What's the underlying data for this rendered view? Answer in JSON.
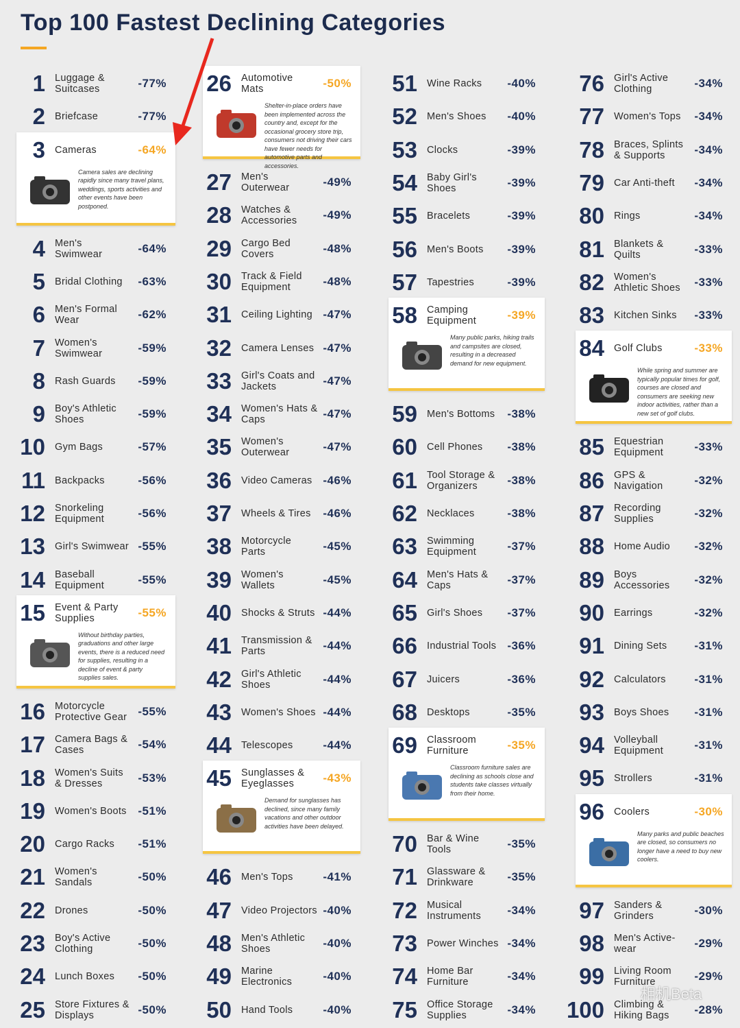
{
  "title": "Top 100 Fastest Declining Categories",
  "watermark": "相机Beta",
  "items": [
    {
      "rank": 1,
      "name": "Luggage & Suitcases",
      "change": "-77%"
    },
    {
      "rank": 2,
      "name": "Briefcase",
      "change": "-77%"
    },
    {
      "rank": 3,
      "name": "Cameras",
      "change": "-64%",
      "description": "Camera sales are declining rapidly since many travel plans, weddings, sports activities and other events have been postponed."
    },
    {
      "rank": 4,
      "name": "Men's Swimwear",
      "change": "-64%"
    },
    {
      "rank": 5,
      "name": "Bridal Clothing",
      "change": "-63%"
    },
    {
      "rank": 6,
      "name": "Men's Formal Wear",
      "change": "-62%"
    },
    {
      "rank": 7,
      "name": "Women's Swimwear",
      "change": "-59%"
    },
    {
      "rank": 8,
      "name": "Rash Guards",
      "change": "-59%"
    },
    {
      "rank": 9,
      "name": "Boy's Athletic Shoes",
      "change": "-59%"
    },
    {
      "rank": 10,
      "name": "Gym Bags",
      "change": "-57%"
    },
    {
      "rank": 11,
      "name": "Backpacks",
      "change": "-56%"
    },
    {
      "rank": 12,
      "name": "Snorkeling Equipment",
      "change": "-56%"
    },
    {
      "rank": 13,
      "name": "Girl's Swimwear",
      "change": "-55%"
    },
    {
      "rank": 14,
      "name": "Baseball Equipment",
      "change": "-55%"
    },
    {
      "rank": 15,
      "name": "Event & Party Supplies",
      "change": "-55%",
      "description": "Without birthday parties, graduations and other large events, there is a reduced need for supplies, resulting in a decline of event & party supplies sales."
    },
    {
      "rank": 16,
      "name": "Motorcycle Protective Gear",
      "change": "-55%"
    },
    {
      "rank": 17,
      "name": "Camera Bags & Cases",
      "change": "-54%"
    },
    {
      "rank": 18,
      "name": "Women's Suits & Dresses",
      "change": "-53%"
    },
    {
      "rank": 19,
      "name": "Women's Boots",
      "change": "-51%"
    },
    {
      "rank": 20,
      "name": "Cargo Racks",
      "change": "-51%"
    },
    {
      "rank": 21,
      "name": "Women's Sandals",
      "change": "-50%"
    },
    {
      "rank": 22,
      "name": "Drones",
      "change": "-50%"
    },
    {
      "rank": 23,
      "name": "Boy's Active Clothing",
      "change": "-50%"
    },
    {
      "rank": 24,
      "name": "Lunch Boxes",
      "change": "-50%"
    },
    {
      "rank": 25,
      "name": "Store Fixtures & Displays",
      "change": "-50%"
    },
    {
      "rank": 26,
      "name": "Automotive Mats",
      "change": "-50%",
      "description": "Shelter-in-place orders have been implemented across the country and, except for the occasional grocery store trip, consumers not driving their cars have fewer needs for automotive parts and accessories."
    },
    {
      "rank": 27,
      "name": "Men's Outerwear",
      "change": "-49%"
    },
    {
      "rank": 28,
      "name": "Watches & Accessories",
      "change": "-49%"
    },
    {
      "rank": 29,
      "name": "Cargo Bed Covers",
      "change": "-48%"
    },
    {
      "rank": 30,
      "name": "Track & Field Equipment",
      "change": "-48%"
    },
    {
      "rank": 31,
      "name": "Ceiling Lighting",
      "change": "-47%"
    },
    {
      "rank": 32,
      "name": "Camera Lenses",
      "change": "-47%"
    },
    {
      "rank": 33,
      "name": "Girl's Coats and Jackets",
      "change": "-47%"
    },
    {
      "rank": 34,
      "name": "Women's Hats & Caps",
      "change": "-47%"
    },
    {
      "rank": 35,
      "name": "Women's Outerwear",
      "change": "-47%"
    },
    {
      "rank": 36,
      "name": "Video Cameras",
      "change": "-46%"
    },
    {
      "rank": 37,
      "name": "Wheels & Tires",
      "change": "-46%"
    },
    {
      "rank": 38,
      "name": "Motorcycle Parts",
      "change": "-45%"
    },
    {
      "rank": 39,
      "name": "Women's Wallets",
      "change": "-45%"
    },
    {
      "rank": 40,
      "name": "Shocks & Struts",
      "change": "-44%"
    },
    {
      "rank": 41,
      "name": "Transmission & Parts",
      "change": "-44%"
    },
    {
      "rank": 42,
      "name": "Girl's Athletic Shoes",
      "change": "-44%"
    },
    {
      "rank": 43,
      "name": "Women's Shoes",
      "change": "-44%"
    },
    {
      "rank": 44,
      "name": "Telescopes",
      "change": "-44%"
    },
    {
      "rank": 45,
      "name": "Sunglasses & Eyeglasses",
      "change": "-43%",
      "description": "Demand for sunglasses has declined, since many family vacations and other outdoor activities have been delayed."
    },
    {
      "rank": 46,
      "name": "Men's Tops",
      "change": "-41%"
    },
    {
      "rank": 47,
      "name": "Video Projectors",
      "change": "-40%"
    },
    {
      "rank": 48,
      "name": "Men's Athletic Shoes",
      "change": "-40%"
    },
    {
      "rank": 49,
      "name": "Marine Electronics",
      "change": "-40%"
    },
    {
      "rank": 50,
      "name": "Hand Tools",
      "change": "-40%"
    },
    {
      "rank": 51,
      "name": "Wine Racks",
      "change": "-40%"
    },
    {
      "rank": 52,
      "name": "Men's Shoes",
      "change": "-40%"
    },
    {
      "rank": 53,
      "name": "Clocks",
      "change": "-39%"
    },
    {
      "rank": 54,
      "name": "Baby Girl's Shoes",
      "change": "-39%"
    },
    {
      "rank": 55,
      "name": "Bracelets",
      "change": "-39%"
    },
    {
      "rank": 56,
      "name": "Men's Boots",
      "change": "-39%"
    },
    {
      "rank": 57,
      "name": "Tapestries",
      "change": "-39%"
    },
    {
      "rank": 58,
      "name": "Camping Equipment",
      "change": "-39%",
      "description": "Many public parks, hiking trails and campsites are closed, resulting in a decreased demand for new equipment."
    },
    {
      "rank": 59,
      "name": "Men's Bottoms",
      "change": "-38%"
    },
    {
      "rank": 60,
      "name": "Cell Phones",
      "change": "-38%"
    },
    {
      "rank": 61,
      "name": "Tool Storage & Organizers",
      "change": "-38%"
    },
    {
      "rank": 62,
      "name": "Necklaces",
      "change": "-38%"
    },
    {
      "rank": 63,
      "name": "Swimming Equipment",
      "change": "-37%"
    },
    {
      "rank": 64,
      "name": "Men's Hats & Caps",
      "change": "-37%"
    },
    {
      "rank": 65,
      "name": "Girl's Shoes",
      "change": "-37%"
    },
    {
      "rank": 66,
      "name": "Industrial Tools",
      "change": "-36%"
    },
    {
      "rank": 67,
      "name": "Juicers",
      "change": "-36%"
    },
    {
      "rank": 68,
      "name": "Desktops",
      "change": "-35%"
    },
    {
      "rank": 69,
      "name": "Classroom Furniture",
      "change": "-35%",
      "description": "Classroom furniture sales are declining as schools close and students take classes virtually from their home."
    },
    {
      "rank": 70,
      "name": "Bar & Wine Tools",
      "change": "-35%"
    },
    {
      "rank": 71,
      "name": "Glassware & Drinkware",
      "change": "-35%"
    },
    {
      "rank": 72,
      "name": "Musical Instruments",
      "change": "-34%"
    },
    {
      "rank": 73,
      "name": "Power Winches",
      "change": "-34%"
    },
    {
      "rank": 74,
      "name": "Home Bar Furniture",
      "change": "-34%"
    },
    {
      "rank": 75,
      "name": "Office Storage Supplies",
      "change": "-34%"
    },
    {
      "rank": 76,
      "name": "Girl's Active Clothing",
      "change": "-34%"
    },
    {
      "rank": 77,
      "name": "Women's Tops",
      "change": "-34%"
    },
    {
      "rank": 78,
      "name": "Braces, Splints & Supports",
      "change": "-34%"
    },
    {
      "rank": 79,
      "name": "Car Anti-theft",
      "change": "-34%"
    },
    {
      "rank": 80,
      "name": "Rings",
      "change": "-34%"
    },
    {
      "rank": 81,
      "name": "Blankets & Quilts",
      "change": "-33%"
    },
    {
      "rank": 82,
      "name": "Women's Athletic Shoes",
      "change": "-33%"
    },
    {
      "rank": 83,
      "name": "Kitchen Sinks",
      "change": "-33%"
    },
    {
      "rank": 84,
      "name": "Golf Clubs",
      "change": "-33%",
      "description": "While spring and summer are typically popular times for golf, courses are closed and consumers are seeking new indoor activities, rather than a new set of golf clubs."
    },
    {
      "rank": 85,
      "name": "Equestrian Equipment",
      "change": "-33%"
    },
    {
      "rank": 86,
      "name": "GPS & Navigation",
      "change": "-32%"
    },
    {
      "rank": 87,
      "name": "Recording Supplies",
      "change": "-32%"
    },
    {
      "rank": 88,
      "name": "Home Audio",
      "change": "-32%"
    },
    {
      "rank": 89,
      "name": "Boys Accessories",
      "change": "-32%"
    },
    {
      "rank": 90,
      "name": "Earrings",
      "change": "-32%"
    },
    {
      "rank": 91,
      "name": "Dining Sets",
      "change": "-31%"
    },
    {
      "rank": 92,
      "name": "Calculators",
      "change": "-31%"
    },
    {
      "rank": 93,
      "name": "Boys Shoes",
      "change": "-31%"
    },
    {
      "rank": 94,
      "name": "Volleyball Equipment",
      "change": "-31%"
    },
    {
      "rank": 95,
      "name": "Strollers",
      "change": "-31%"
    },
    {
      "rank": 96,
      "name": "Coolers",
      "change": "-30%",
      "description": "Many parks and public beaches are closed, so consumers no longer have a need to buy new coolers."
    },
    {
      "rank": 97,
      "name": "Sanders & Grinders",
      "change": "-30%"
    },
    {
      "rank": 98,
      "name": "Men's Active-wear",
      "change": "-29%"
    },
    {
      "rank": 99,
      "name": "Living Room Furniture",
      "change": "-29%"
    },
    {
      "rank": 100,
      "name": "Climbing & Hiking Bags",
      "change": "-28%"
    }
  ]
}
